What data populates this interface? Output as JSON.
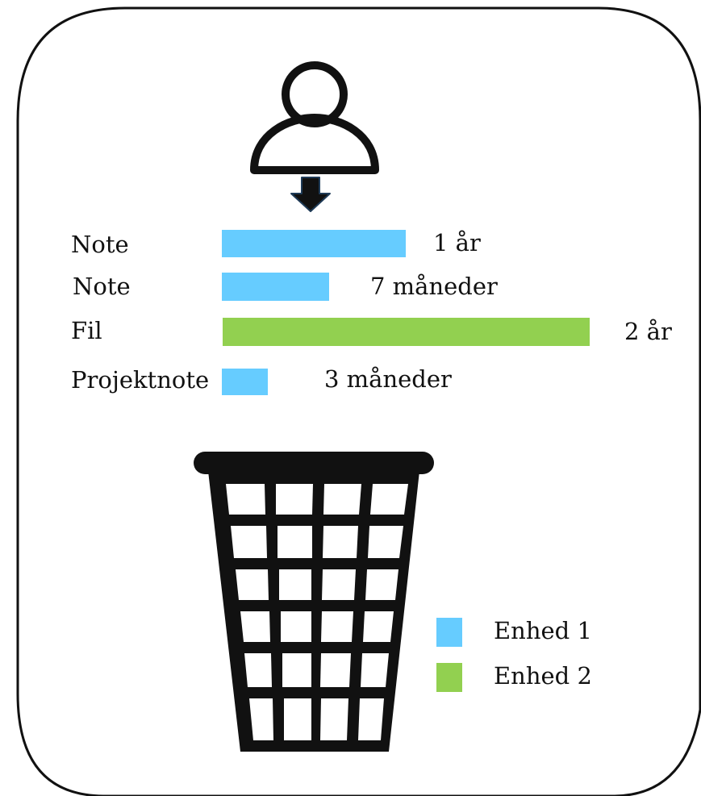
{
  "rows": [
    {
      "label": "Note",
      "value_text": "1 år",
      "months": 12,
      "unit": "Enhed 1"
    },
    {
      "label": "Note",
      "value_text": "7 måneder",
      "months": 7,
      "unit": "Enhed 1"
    },
    {
      "label": "Fil",
      "value_text": "2 år",
      "months": 24,
      "unit": "Enhed 2"
    },
    {
      "label": "Projektnote",
      "value_text": "3 måneder",
      "months": 3,
      "unit": "Enhed 1"
    }
  ],
  "legend": [
    {
      "label": "Enhed 1",
      "color": "#66CCFF"
    },
    {
      "label": "Enhed 2",
      "color": "#92D050"
    }
  ],
  "icons": {
    "user": "user-icon",
    "arrow": "arrow-down-icon",
    "trash": "trash-basket-icon"
  }
}
